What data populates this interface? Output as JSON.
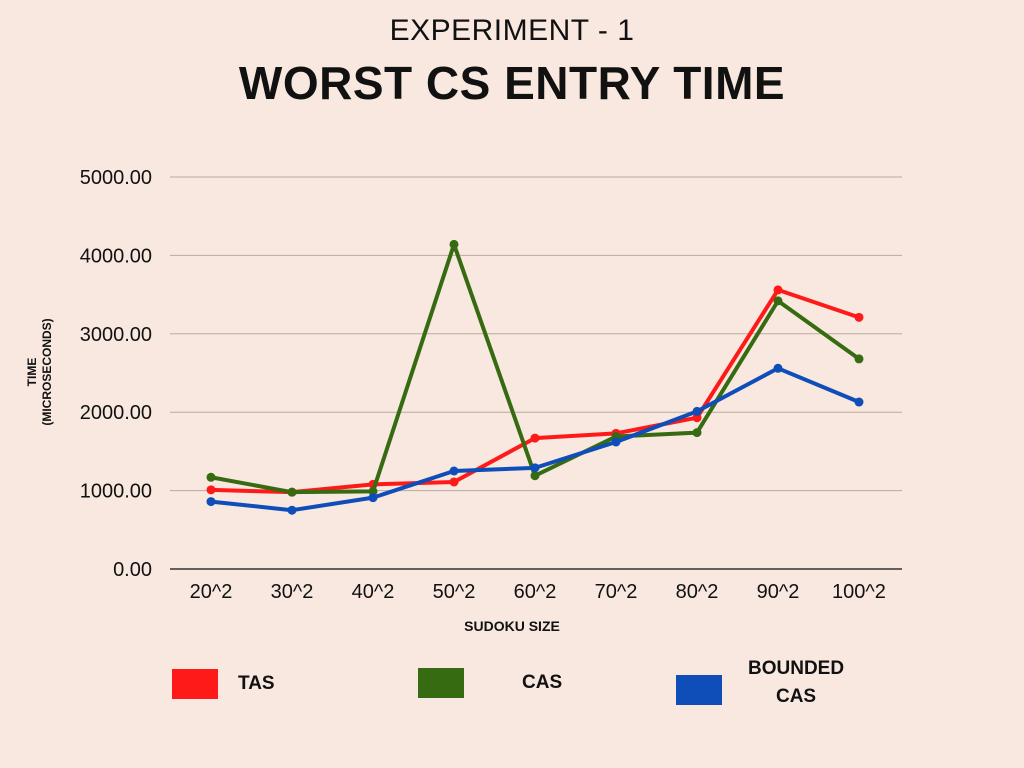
{
  "chart_data": {
    "type": "line",
    "title": "WORST CS ENTRY TIME",
    "subtitle": "EXPERIMENT - 1",
    "xlabel": "SUDOKU SIZE",
    "ylabel_line1": "TIME",
    "ylabel_line2": "(MICROSECONDS)",
    "categories": [
      "20^2",
      "30^2",
      "40^2",
      "50^2",
      "60^2",
      "70^2",
      "80^2",
      "90^2",
      "100^2"
    ],
    "y_ticks": [
      "0.00",
      "1000.00",
      "2000.00",
      "3000.00",
      "4000.00",
      "5000.00"
    ],
    "ylim": [
      0,
      5000
    ],
    "grid": true,
    "legend_position": "bottom",
    "series": [
      {
        "name": "TAS",
        "color": "#ff1a1a",
        "values": [
          1010,
          980,
          1080,
          1110,
          1670,
          1730,
          1930,
          3560,
          3210
        ]
      },
      {
        "name": "CAS",
        "color": "#376b12",
        "values": [
          1170,
          980,
          990,
          4140,
          1190,
          1690,
          1740,
          3420,
          2680
        ]
      },
      {
        "name": "BOUNDED CAS",
        "color": "#0f4db8",
        "values": [
          860,
          750,
          910,
          1250,
          1290,
          1620,
          2010,
          2560,
          2130
        ]
      }
    ]
  },
  "legend": {
    "tas": "TAS",
    "cas": "CAS",
    "bounded_line1": "BOUNDED",
    "bounded_line2": "CAS"
  }
}
